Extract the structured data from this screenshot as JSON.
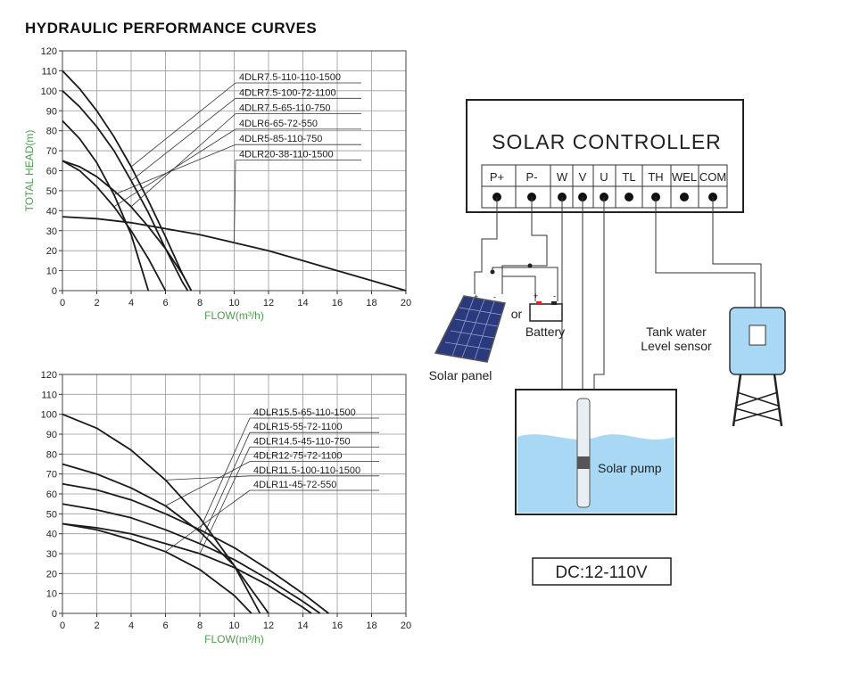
{
  "header": {
    "title": "HYDRAULIC PERFORMANCE CURVES"
  },
  "chart_data": [
    {
      "type": "line",
      "y_label": "TOTAL HEAD(m)",
      "x_label": "FLOW(m³/h)",
      "color": "#1a1a1a",
      "xlim": [
        0,
        20
      ],
      "ylim": [
        0,
        120
      ],
      "xticks": [
        0,
        2,
        4,
        6,
        8,
        10,
        12,
        14,
        16,
        18,
        20
      ],
      "yticks": [
        0,
        10,
        20,
        30,
        40,
        50,
        60,
        70,
        80,
        90,
        100,
        110,
        120
      ],
      "grid": true,
      "series": [
        {
          "name": "4DLR7.5-110-110-1500",
          "x": [
            0,
            1,
            2,
            3,
            4,
            5,
            6,
            7,
            7.5
          ],
          "values": [
            110,
            101,
            90,
            77,
            62,
            45,
            27,
            8,
            0
          ]
        },
        {
          "name": "4DLR7.5-100-72-1100",
          "x": [
            0,
            1,
            2,
            3,
            4,
            5,
            6,
            7,
            7.3
          ],
          "values": [
            100,
            92,
            82,
            70,
            55,
            39,
            21,
            4,
            0
          ]
        },
        {
          "name": "4DLR7.5-65-110-750",
          "x": [
            0,
            1,
            2,
            3,
            4,
            5,
            6,
            7,
            7.5
          ],
          "values": [
            65,
            62,
            57,
            50,
            42,
            32,
            21,
            8,
            0
          ]
        },
        {
          "name": "4DLR6-65-72-550",
          "x": [
            0,
            1,
            2,
            3,
            4,
            5,
            6
          ],
          "values": [
            65,
            60,
            52,
            42,
            30,
            16,
            0
          ]
        },
        {
          "name": "4DLR5-85-110-750",
          "x": [
            0,
            1,
            2,
            3,
            4,
            5
          ],
          "values": [
            85,
            76,
            64,
            48,
            28,
            0
          ]
        },
        {
          "name": "4DLR20-38-110-1500",
          "x": [
            0,
            2,
            4,
            6,
            8,
            10,
            12,
            14,
            16,
            18,
            20
          ],
          "values": [
            37,
            36,
            34,
            31,
            28,
            24,
            20,
            15,
            10,
            5,
            0
          ]
        }
      ]
    },
    {
      "type": "line",
      "x_label": "FLOW(m³/h)",
      "color": "#1a1a1a",
      "xlim": [
        0,
        20
      ],
      "ylim": [
        0,
        120
      ],
      "xticks": [
        0,
        2,
        4,
        6,
        8,
        10,
        12,
        14,
        16,
        18,
        20
      ],
      "yticks": [
        0,
        10,
        20,
        30,
        40,
        50,
        60,
        70,
        80,
        90,
        100,
        110,
        120
      ],
      "grid": true,
      "series": [
        {
          "name": "4DLR15.5-65-110-1500",
          "x": [
            0,
            2,
            4,
            6,
            8,
            10,
            12,
            14,
            15.5
          ],
          "values": [
            65,
            62,
            57,
            50,
            42,
            33,
            22,
            10,
            0
          ]
        },
        {
          "name": "4DLR15-55-72-1100",
          "x": [
            0,
            2,
            4,
            6,
            8,
            10,
            12,
            14,
            15
          ],
          "values": [
            55,
            52,
            48,
            42,
            35,
            27,
            17,
            6,
            0
          ]
        },
        {
          "name": "4DLR14.5-45-110-750",
          "x": [
            0,
            2,
            4,
            6,
            8,
            10,
            12,
            14,
            14.5
          ],
          "values": [
            45,
            43,
            40,
            35,
            30,
            23,
            14,
            3,
            0
          ]
        },
        {
          "name": "4DLR12-75-72-1100",
          "x": [
            0,
            2,
            4,
            6,
            8,
            10,
            12
          ],
          "values": [
            75,
            70,
            63,
            54,
            41,
            24,
            0
          ]
        },
        {
          "name": "4DLR11.5-100-110-1500",
          "x": [
            0,
            2,
            4,
            6,
            8,
            10,
            11.5
          ],
          "values": [
            100,
            93,
            82,
            67,
            48,
            24,
            0
          ]
        },
        {
          "name": "4DLR11-45-72-550",
          "x": [
            0,
            2,
            4,
            6,
            8,
            10,
            11
          ],
          "values": [
            45,
            42,
            37,
            31,
            22,
            9,
            0
          ]
        }
      ]
    }
  ],
  "diagram": {
    "controller_title": "SOLAR CONTROLLER",
    "terminals": [
      "P+",
      "P-",
      "W",
      "V",
      "U",
      "TL",
      "TH",
      "WEL",
      "COM"
    ],
    "panel_terminals": [
      "+",
      "-"
    ],
    "battery_terminals": [
      "+",
      "-"
    ],
    "or_label": "or",
    "battery_label": "Battery",
    "panel_label": "Solar panel",
    "pump_label": "Solar pump",
    "sensor_label": [
      "Tank water",
      "Level sensor"
    ],
    "voltage_label": "DC:12-110V"
  }
}
